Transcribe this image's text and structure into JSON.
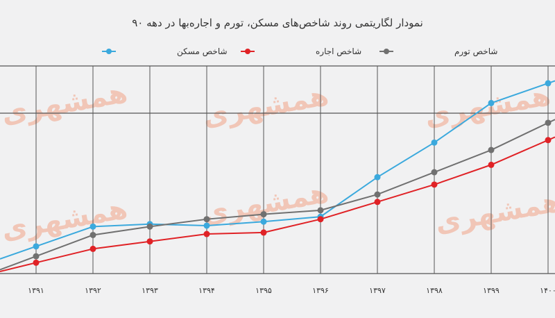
{
  "chart_data": {
    "type": "line",
    "title": "نمودار لگاریتمی روند شاخص‌های مسکن، تورم و اجاره‌بها در دهه ۹۰",
    "categories": [
      "۱۳۹۱",
      "۱۳۹۲",
      "۱۳۹۳",
      "۱۳۹۴",
      "۱۳۹۵",
      "۱۳۹۶",
      "۱۳۹۷",
      "۱۳۹۸",
      "۱۳۹۹",
      "۱۴۰۰"
    ],
    "x": [
      1391,
      1392,
      1393,
      1394,
      1395,
      1396,
      1397,
      1398,
      1399,
      1400
    ],
    "ylim": [
      0,
      4.2
    ],
    "grid": true,
    "legend_position": "top",
    "series": [
      {
        "name": "شاخص مسکن",
        "color": "#3ba9dd",
        "values": [
          0.55,
          0.95,
          1.0,
          0.97,
          1.05,
          1.15,
          1.95,
          2.65,
          3.45,
          3.85
        ]
      },
      {
        "name": "شاخص اجاره",
        "color": "#e02226",
        "values": [
          0.22,
          0.5,
          0.65,
          0.8,
          0.83,
          1.1,
          1.45,
          1.8,
          2.2,
          2.7
        ]
      },
      {
        "name": "شاخص تورم",
        "color": "#707070",
        "values": [
          0.35,
          0.78,
          0.95,
          1.1,
          1.2,
          1.28,
          1.6,
          2.05,
          2.5,
          3.05
        ]
      }
    ],
    "watermark": "همشهری"
  }
}
